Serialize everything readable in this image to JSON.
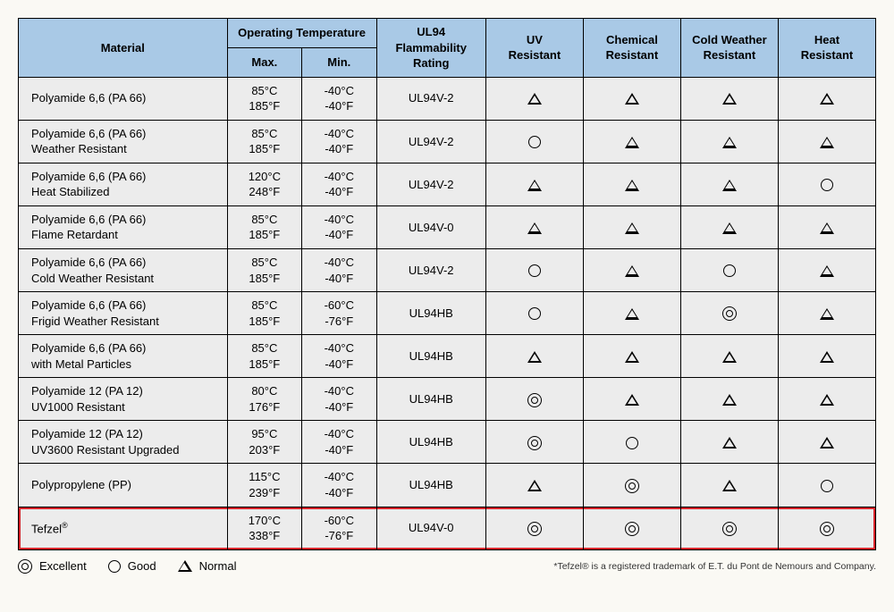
{
  "colors": {
    "header_bg": "#a9c9e6",
    "row_bg": "#ececec",
    "border": "#000000",
    "highlight_border": "#d8232a",
    "page_bg": "#faf9f4"
  },
  "table": {
    "headers": {
      "material": "Material",
      "operating_temperature": "Operating Temperature",
      "max": "Max.",
      "min": "Min.",
      "ul94": "UL94\nFlammability\nRating",
      "uv": "UV\nResistant",
      "chemical": "Chemical\nResistant",
      "cold": "Cold Weather\nResistant",
      "heat": "Heat\nResistant"
    },
    "rows": [
      {
        "material": "Polyamide 6,6 (PA 66)",
        "max": "85°C\n185°F",
        "min": "-40°C\n-40°F",
        "ul94": "UL94V-2",
        "uv": "normal",
        "chemical": "normal",
        "cold": "normal",
        "heat": "normal",
        "highlight": false
      },
      {
        "material": "Polyamide 6,6 (PA 66)\nWeather Resistant",
        "max": "85°C\n185°F",
        "min": "-40°C\n-40°F",
        "ul94": "UL94V-2",
        "uv": "good",
        "chemical": "normal",
        "cold": "normal",
        "heat": "normal",
        "highlight": false
      },
      {
        "material": "Polyamide 6,6 (PA 66)\nHeat Stabilized",
        "max": "120°C\n248°F",
        "min": "-40°C\n-40°F",
        "ul94": "UL94V-2",
        "uv": "normal",
        "chemical": "normal",
        "cold": "normal",
        "heat": "good",
        "highlight": false
      },
      {
        "material": "Polyamide 6,6 (PA 66)\nFlame Retardant",
        "max": "85°C\n185°F",
        "min": "-40°C\n-40°F",
        "ul94": "UL94V-0",
        "uv": "normal",
        "chemical": "normal",
        "cold": "normal",
        "heat": "normal",
        "highlight": false
      },
      {
        "material": "Polyamide 6,6 (PA 66)\nCold Weather Resistant",
        "max": "85°C\n185°F",
        "min": "-40°C\n-40°F",
        "ul94": "UL94V-2",
        "uv": "good",
        "chemical": "normal",
        "cold": "good",
        "heat": "normal",
        "highlight": false
      },
      {
        "material": "Polyamide 6,6 (PA 66)\nFrigid Weather Resistant",
        "max": "85°C\n185°F",
        "min": "-60°C\n-76°F",
        "ul94": "UL94HB",
        "uv": "good",
        "chemical": "normal",
        "cold": "excellent",
        "heat": "normal",
        "highlight": false
      },
      {
        "material": "Polyamide 6,6 (PA 66)\nwith Metal Particles",
        "max": "85°C\n185°F",
        "min": "-40°C\n-40°F",
        "ul94": "UL94HB",
        "uv": "normal",
        "chemical": "normal",
        "cold": "normal",
        "heat": "normal",
        "highlight": false
      },
      {
        "material": "Polyamide 12 (PA 12)\nUV1000 Resistant",
        "max": "80°C\n176°F",
        "min": "-40°C\n-40°F",
        "ul94": "UL94HB",
        "uv": "excellent",
        "chemical": "normal",
        "cold": "normal",
        "heat": "normal",
        "highlight": false
      },
      {
        "material": "Polyamide 12 (PA 12)\nUV3600 Resistant Upgraded",
        "max": "95°C\n203°F",
        "min": "-40°C\n-40°F",
        "ul94": "UL94HB",
        "uv": "excellent",
        "chemical": "good",
        "cold": "normal",
        "heat": "normal",
        "highlight": false
      },
      {
        "material": "Polypropylene (PP)",
        "max": "115°C\n239°F",
        "min": "-40°C\n-40°F",
        "ul94": "UL94HB",
        "uv": "normal",
        "chemical": "excellent",
        "cold": "normal",
        "heat": "good",
        "highlight": false
      },
      {
        "material": "Tefzel®",
        "max": "170°C\n338°F",
        "min": "-60°C\n-76°F",
        "ul94": "UL94V-0",
        "uv": "excellent",
        "chemical": "excellent",
        "cold": "excellent",
        "heat": "excellent",
        "highlight": true
      }
    ]
  },
  "legend": {
    "excellent": "Excellent",
    "good": "Good",
    "normal": "Normal"
  },
  "footnote": "*Tefzel® is a registered trademark of E.T. du Pont de Nemours and Company."
}
